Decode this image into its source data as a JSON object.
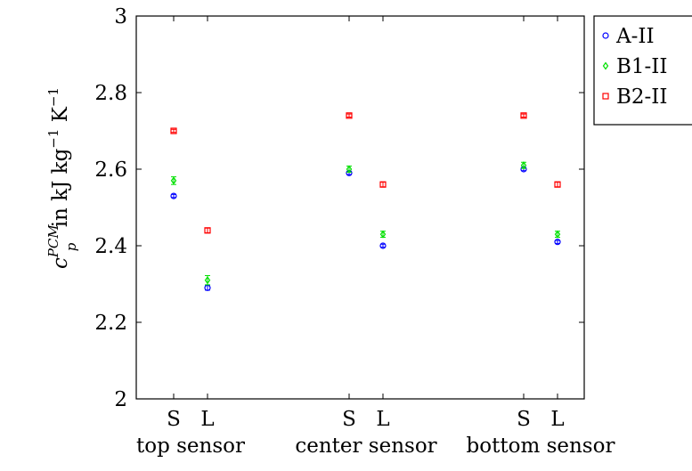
{
  "chart_data": {
    "type": "scatter",
    "ylim": [
      2,
      3
    ],
    "yticks": [
      "2",
      "2.2",
      "2.4",
      "2.6",
      "2.8",
      "3"
    ],
    "ytick_values": [
      2,
      2.2,
      2.4,
      2.6,
      2.8,
      3
    ],
    "ylabel": {
      "main": "c",
      "sup": "PCM",
      "sub": "p",
      "rest": " in kJ kg",
      "exp": "−1",
      "unit": " K",
      "exp2": "−1"
    },
    "x_tick_labels": [
      "S",
      "L",
      "S",
      "L",
      "S",
      "L"
    ],
    "group_labels": [
      "top sensor",
      "center sensor",
      "bottom sensor"
    ],
    "grid": false,
    "legend_position": "outside-top-right",
    "series": [
      {
        "name": "A-II",
        "color": "#0000ff",
        "marker": "circle",
        "values": [
          2.53,
          2.29,
          2.59,
          2.4,
          2.6,
          2.41
        ],
        "errors": [
          0.004,
          0.006,
          0.004,
          0.004,
          0.004,
          0.004
        ]
      },
      {
        "name": "B1-II",
        "color": "#00e000",
        "marker": "diamond",
        "values": [
          2.57,
          2.31,
          2.6,
          2.43,
          2.61,
          2.43
        ],
        "errors": [
          0.01,
          0.012,
          0.008,
          0.008,
          0.008,
          0.008
        ]
      },
      {
        "name": "B2-II",
        "color": "#ff0000",
        "marker": "square",
        "values": [
          2.7,
          2.44,
          2.74,
          2.56,
          2.74,
          2.56
        ],
        "errors": [
          0.004,
          0.006,
          0.004,
          0.006,
          0.004,
          0.006
        ]
      }
    ]
  }
}
